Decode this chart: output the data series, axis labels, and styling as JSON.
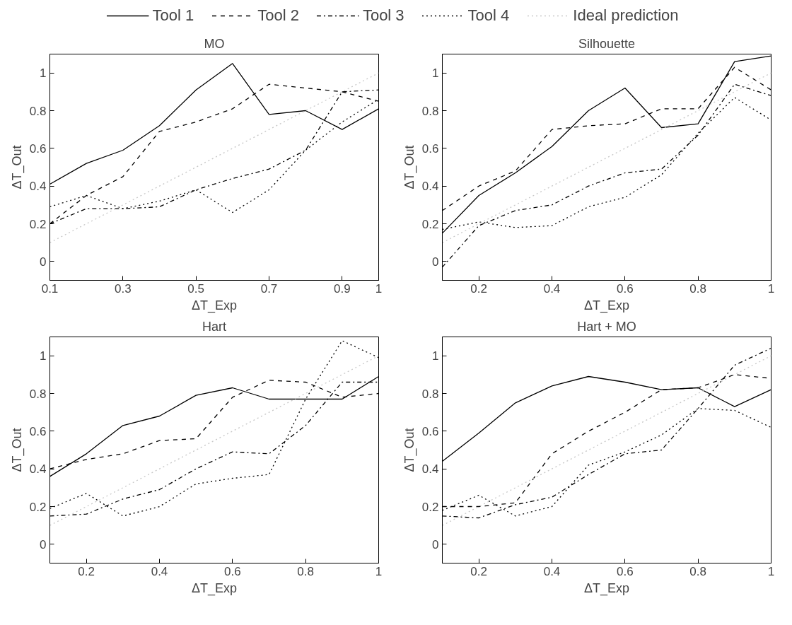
{
  "chart_data": [
    {
      "type": "line",
      "title": "MO",
      "xlabel": "ΔT_Exp",
      "ylabel": "ΔT_Out",
      "x": [
        0.1,
        0.2,
        0.3,
        0.4,
        0.5,
        0.6,
        0.7,
        0.8,
        0.9,
        1.0
      ],
      "xlim": [
        0.1,
        1
      ],
      "xticks": [
        0.1,
        0.3,
        0.5,
        0.7,
        0.9,
        1
      ],
      "ylim": [
        -0.1,
        1.1
      ],
      "yticks": [
        0,
        0.2,
        0.4,
        0.6,
        0.8,
        1
      ],
      "grid": false,
      "legend": "top",
      "series": [
        {
          "name": "Tool 1",
          "color": "#000000",
          "line_style": "solid",
          "values": [
            0.41,
            0.52,
            0.59,
            0.72,
            0.91,
            1.05,
            0.78,
            0.8,
            0.7,
            0.81
          ]
        },
        {
          "name": "Tool 2",
          "color": "#000000",
          "line_style": "dashed",
          "values": [
            0.2,
            0.35,
            0.45,
            0.69,
            0.74,
            0.81,
            0.94,
            0.92,
            0.9,
            0.85
          ]
        },
        {
          "name": "Tool 3",
          "color": "#000000",
          "line_style": "dashdot",
          "values": [
            0.2,
            0.28,
            0.28,
            0.29,
            0.38,
            0.44,
            0.49,
            0.59,
            0.9,
            0.91
          ]
        },
        {
          "name": "Tool 4",
          "color": "#000000",
          "line_style": "dotted",
          "values": [
            0.29,
            0.35,
            0.28,
            0.32,
            0.38,
            0.26,
            0.38,
            0.59,
            0.74,
            0.86
          ]
        },
        {
          "name": "Ideal prediction",
          "color": "#c8c8c8",
          "line_style": "dotted",
          "values": [
            0.1,
            0.2,
            0.3,
            0.4,
            0.5,
            0.6,
            0.7,
            0.8,
            0.9,
            1.0
          ]
        }
      ]
    },
    {
      "type": "line",
      "title": "Silhouette",
      "xlabel": "ΔT_Exp",
      "ylabel": "ΔT_Out",
      "x": [
        0.1,
        0.2,
        0.3,
        0.4,
        0.5,
        0.6,
        0.7,
        0.8,
        0.9,
        1.0
      ],
      "xlim": [
        0.1,
        1
      ],
      "xticks": [
        0.2,
        0.4,
        0.6,
        0.8,
        1
      ],
      "ylim": [
        -0.1,
        1.1
      ],
      "yticks": [
        0,
        0.2,
        0.4,
        0.6,
        0.8,
        1
      ],
      "grid": false,
      "series": [
        {
          "color": "#000000",
          "line_style": "solid",
          "values": [
            0.15,
            0.35,
            0.47,
            0.61,
            0.8,
            0.92,
            0.71,
            0.73,
            1.06,
            1.09
          ]
        },
        {
          "color": "#000000",
          "line_style": "dashed",
          "values": [
            0.27,
            0.4,
            0.48,
            0.7,
            0.72,
            0.73,
            0.81,
            0.81,
            1.03,
            0.91
          ]
        },
        {
          "color": "#000000",
          "line_style": "dashdot",
          "values": [
            -0.03,
            0.19,
            0.27,
            0.3,
            0.4,
            0.47,
            0.49,
            0.67,
            0.94,
            0.88
          ]
        },
        {
          "color": "#000000",
          "line_style": "dotted",
          "values": [
            0.17,
            0.21,
            0.18,
            0.19,
            0.29,
            0.34,
            0.46,
            0.68,
            0.87,
            0.75
          ]
        },
        {
          "color": "#c8c8c8",
          "line_style": "dotted",
          "values": [
            0.1,
            0.2,
            0.3,
            0.4,
            0.5,
            0.6,
            0.7,
            0.8,
            0.9,
            1.0
          ]
        }
      ]
    },
    {
      "type": "line",
      "title": "Hart",
      "xlabel": "ΔT_Exp",
      "ylabel": "ΔT_Out",
      "x": [
        0.1,
        0.2,
        0.3,
        0.4,
        0.5,
        0.6,
        0.7,
        0.8,
        0.9,
        1.0
      ],
      "xlim": [
        0.1,
        1
      ],
      "xticks": [
        0.2,
        0.4,
        0.6,
        0.8,
        1
      ],
      "ylim": [
        -0.1,
        1.1
      ],
      "yticks": [
        0,
        0.2,
        0.4,
        0.6,
        0.8,
        1
      ],
      "grid": false,
      "series": [
        {
          "color": "#000000",
          "line_style": "solid",
          "values": [
            0.36,
            0.48,
            0.63,
            0.68,
            0.79,
            0.83,
            0.77,
            0.77,
            0.77,
            0.89
          ]
        },
        {
          "color": "#000000",
          "line_style": "dashed",
          "values": [
            0.4,
            0.45,
            0.48,
            0.55,
            0.56,
            0.78,
            0.87,
            0.86,
            0.78,
            0.8
          ]
        },
        {
          "color": "#000000",
          "line_style": "dashdot",
          "values": [
            0.15,
            0.16,
            0.24,
            0.29,
            0.4,
            0.49,
            0.48,
            0.63,
            0.86,
            0.86
          ]
        },
        {
          "color": "#000000",
          "line_style": "dotted",
          "values": [
            0.19,
            0.27,
            0.15,
            0.2,
            0.32,
            0.35,
            0.37,
            0.77,
            1.08,
            0.99
          ]
        },
        {
          "color": "#c8c8c8",
          "line_style": "dotted",
          "values": [
            0.1,
            0.2,
            0.3,
            0.4,
            0.5,
            0.6,
            0.7,
            0.8,
            0.9,
            1.0
          ]
        }
      ]
    },
    {
      "type": "line",
      "title": "Hart + MO",
      "xlabel": "ΔT_Exp",
      "ylabel": "ΔT_Out",
      "x": [
        0.1,
        0.2,
        0.3,
        0.4,
        0.5,
        0.6,
        0.7,
        0.8,
        0.9,
        1.0
      ],
      "xlim": [
        0.1,
        1
      ],
      "xticks": [
        0.2,
        0.4,
        0.6,
        0.8,
        1
      ],
      "ylim": [
        -0.1,
        1.1
      ],
      "yticks": [
        0,
        0.2,
        0.4,
        0.6,
        0.8,
        1
      ],
      "grid": false,
      "series": [
        {
          "color": "#000000",
          "line_style": "solid",
          "values": [
            0.44,
            0.59,
            0.75,
            0.84,
            0.89,
            0.86,
            0.82,
            0.83,
            0.73,
            0.82
          ]
        },
        {
          "color": "#000000",
          "line_style": "dashed",
          "values": [
            0.2,
            0.2,
            0.22,
            0.48,
            0.6,
            0.7,
            0.82,
            0.83,
            0.9,
            0.88
          ]
        },
        {
          "color": "#000000",
          "line_style": "dashdot",
          "values": [
            0.15,
            0.14,
            0.21,
            0.25,
            0.37,
            0.48,
            0.5,
            0.72,
            0.95,
            1.04
          ]
        },
        {
          "color": "#000000",
          "line_style": "dotted",
          "values": [
            0.18,
            0.26,
            0.15,
            0.2,
            0.42,
            0.49,
            0.58,
            0.72,
            0.71,
            0.62
          ]
        },
        {
          "color": "#c8c8c8",
          "line_style": "dotted",
          "values": [
            0.1,
            0.2,
            0.3,
            0.4,
            0.5,
            0.6,
            0.7,
            0.8,
            0.9,
            1.0
          ]
        }
      ]
    }
  ]
}
